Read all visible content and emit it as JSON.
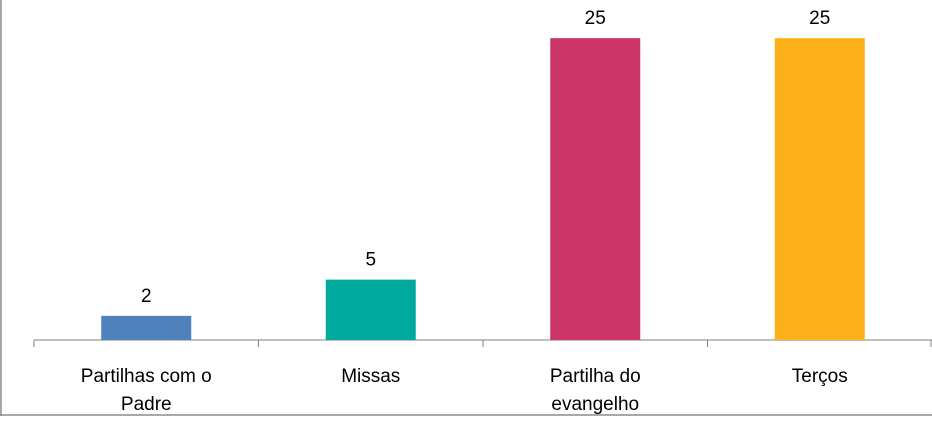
{
  "chart_data": {
    "type": "bar",
    "categories": [
      [
        "Partilhas com o",
        "Padre"
      ],
      [
        "Missas"
      ],
      [
        "Partilha do",
        "evangelho"
      ],
      [
        "Terços"
      ]
    ],
    "values": [
      2,
      5,
      25,
      25
    ],
    "data_labels": [
      "2",
      "5",
      "25",
      "25"
    ],
    "colors": [
      "#4F81BD",
      "#00A99D",
      "#CC3366",
      "#FBB117"
    ],
    "ylim": [
      0,
      27
    ],
    "grid": false,
    "legend": "none",
    "title": "",
    "xlabel": "",
    "ylabel": ""
  }
}
